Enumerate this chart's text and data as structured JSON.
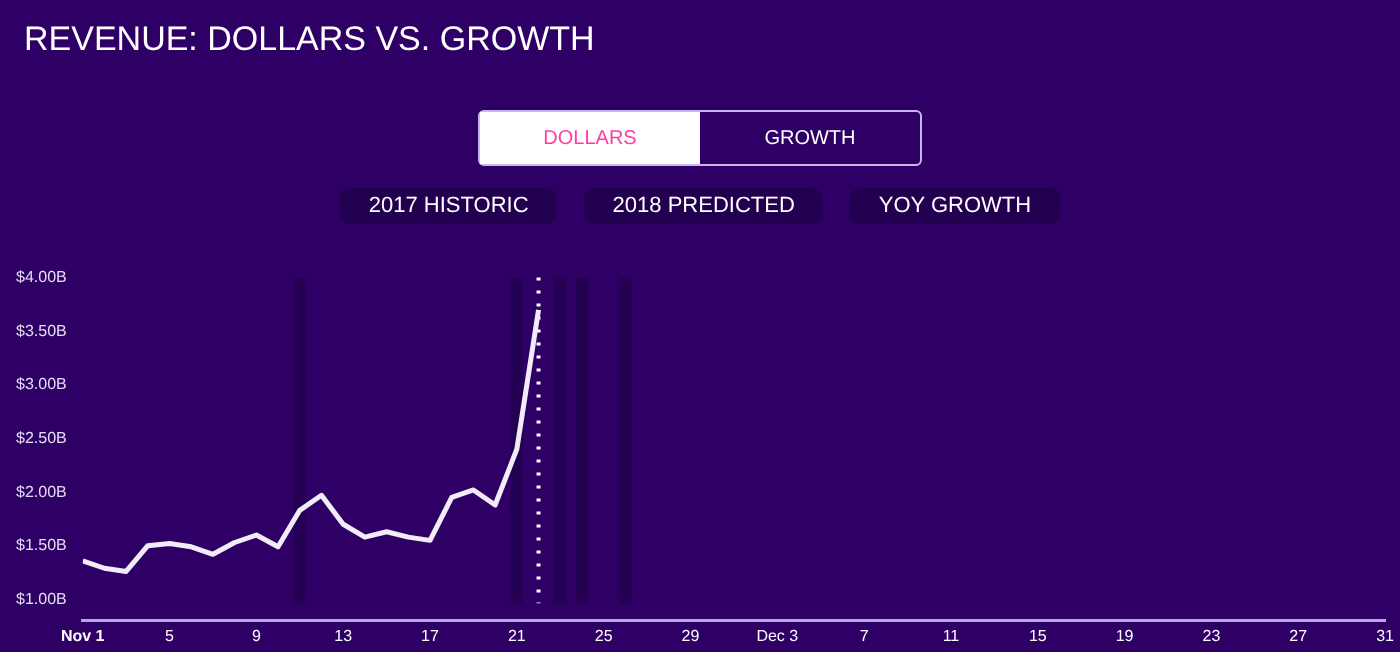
{
  "chart_data": {
    "type": "line",
    "title": "REVENUE: DOLLARS VS. GROWTH",
    "annotations": [
      "DOLLARS",
      "GROWTH",
      "2017 HISTORIC",
      "2018 PREDICTED",
      "YOY GROWTH"
    ],
    "x": [
      "--11-01",
      "--11-02",
      "--11-03",
      "--11-04",
      "--11-05",
      "--11-06",
      "--11-07",
      "--11-08",
      "--11-09",
      "--11-10",
      "--11-11",
      "--11-12",
      "--11-13",
      "--11-14",
      "--11-15",
      "--11-16",
      "--11-17",
      "--11-18",
      "--11-19",
      "--11-20",
      "--11-21",
      "--11-22"
    ],
    "series": [
      {
        "color": "#f2ecf8",
        "values": [
          1.36,
          1.29,
          1.26,
          1.5,
          1.52,
          1.49,
          1.42,
          1.53,
          1.6,
          1.49,
          1.83,
          1.97,
          1.7,
          1.58,
          1.63,
          1.58,
          1.55,
          1.95,
          2.02,
          1.88,
          2.4,
          3.7
        ]
      }
    ],
    "xlim": [
      "--11-01",
      "--12-31"
    ],
    "xticks": [
      {
        "value": "--11-01",
        "label": "Nov 1"
      },
      {
        "value": "--11-05",
        "label": "5"
      },
      {
        "value": "--11-09",
        "label": "9"
      },
      {
        "value": "--11-13",
        "label": "13"
      },
      {
        "value": "--11-17",
        "label": "17"
      },
      {
        "value": "--11-21",
        "label": "21"
      },
      {
        "value": "--11-25",
        "label": "25"
      },
      {
        "value": "--11-29",
        "label": "29"
      },
      {
        "value": "--12-03",
        "label": "Dec 3"
      },
      {
        "value": "--12-07",
        "label": "7"
      },
      {
        "value": "--12-11",
        "label": "11"
      },
      {
        "value": "--12-15",
        "label": "15"
      },
      {
        "value": "--12-19",
        "label": "19"
      },
      {
        "value": "--12-23",
        "label": "23"
      },
      {
        "value": "--12-27",
        "label": "27"
      },
      {
        "value": "--12-31",
        "label": "31"
      }
    ],
    "ylim": [
      0.8,
      4
    ],
    "yticks": [
      {
        "value": 1,
        "label": "$1.00B"
      },
      {
        "value": 1.5,
        "label": "$1.50B"
      },
      {
        "value": 2,
        "label": "$2.00B"
      },
      {
        "value": 2.5,
        "label": "$2.50B"
      },
      {
        "value": 3,
        "label": "$3.00B"
      },
      {
        "value": 3.5,
        "label": "$3.50B"
      },
      {
        "value": 4,
        "label": "$4.00B"
      }
    ],
    "ref_lines": [
      {
        "axis": "x",
        "value": "--11-11",
        "color": "#230052",
        "line_style": "solid"
      },
      {
        "axis": "x",
        "value": "--11-21",
        "color": "#230052",
        "line_style": "solid"
      },
      {
        "axis": "x",
        "value": "--11-23",
        "color": "#230052",
        "line_style": "solid"
      },
      {
        "axis": "x",
        "value": "--11-24",
        "color": "#230052",
        "line_style": "solid"
      },
      {
        "axis": "x",
        "value": "--11-26",
        "color": "#230052",
        "line_style": "solid"
      },
      {
        "axis": "x",
        "value": "--11-22",
        "color": "#ffffff",
        "line_style": "dotted"
      }
    ],
    "grid": false,
    "legend": false,
    "marker": "none",
    "line_style": "solid"
  }
}
